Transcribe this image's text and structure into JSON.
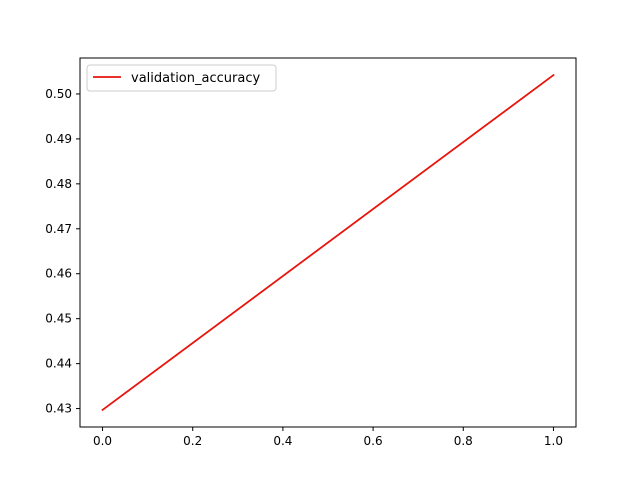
{
  "chart_data": {
    "type": "line",
    "title": "",
    "xlabel": "",
    "ylabel": "",
    "xlim": [
      -0.05,
      1.05
    ],
    "ylim": [
      0.4259,
      0.508
    ],
    "xticks": [
      0.0,
      0.2,
      0.4,
      0.6,
      0.8,
      1.0
    ],
    "xtick_labels": [
      "0.0",
      "0.2",
      "0.4",
      "0.6",
      "0.8",
      "1.0"
    ],
    "yticks": [
      0.43,
      0.44,
      0.45,
      0.46,
      0.47,
      0.48,
      0.49,
      0.5
    ],
    "ytick_labels": [
      "0.43",
      "0.44",
      "0.45",
      "0.46",
      "0.47",
      "0.48",
      "0.49",
      "0.50"
    ],
    "grid": false,
    "legend_position": "upper-left",
    "series": [
      {
        "name": "validation_accuracy",
        "color": "#e8150c",
        "x": [
          0.0,
          1.0
        ],
        "y": [
          0.4297,
          0.5042
        ]
      }
    ]
  }
}
